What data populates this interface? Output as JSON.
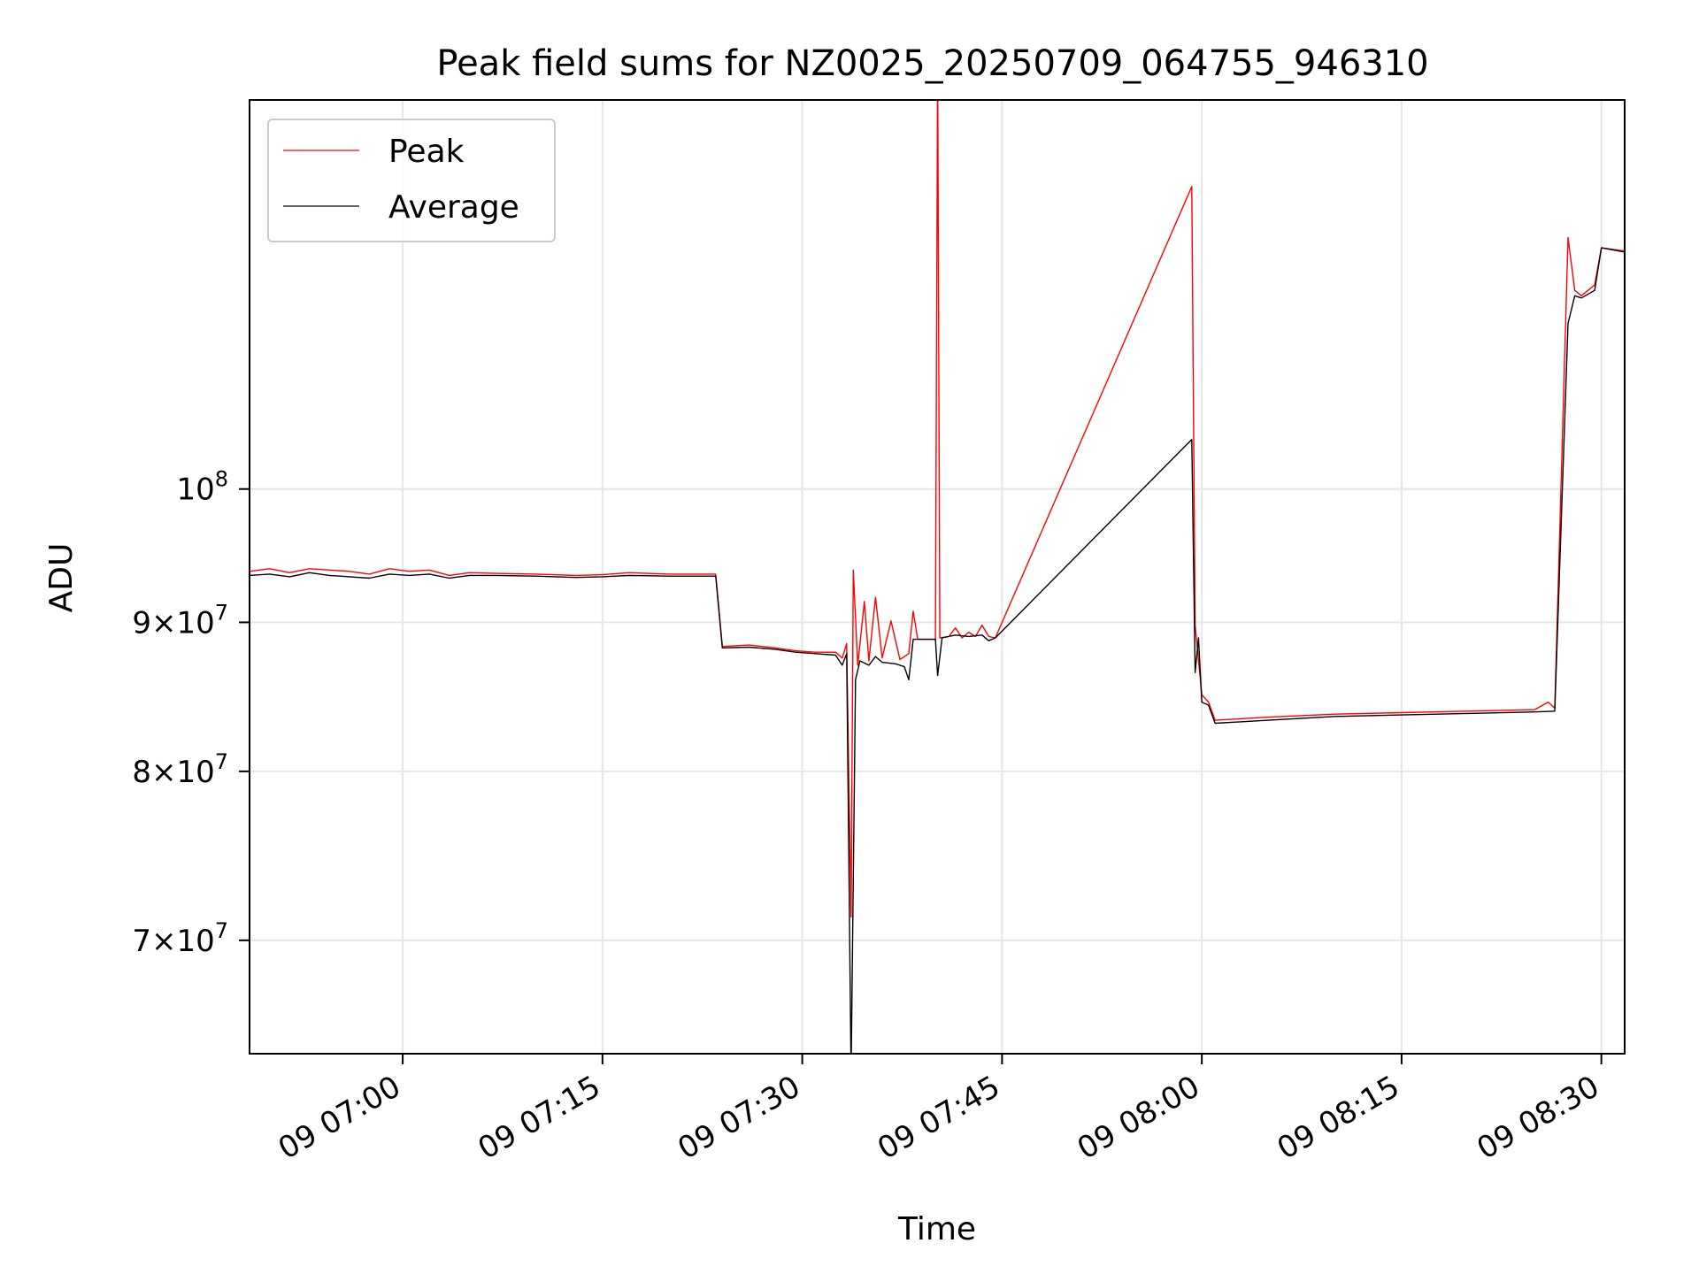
{
  "chart_data": {
    "type": "line",
    "title": "Peak field sums for NZ0025_20250709_064755_946310",
    "xlabel": "Time",
    "ylabel": "ADU",
    "x_unit": "time of day on 2025-07-09 (HH:MM)",
    "y_scale": "log",
    "xlim": [
      "06:48:30",
      "08:31:45"
    ],
    "ylim": [
      64000000,
      136000000
    ],
    "grid": true,
    "legend_position": "upper-left",
    "x_ticks": [
      {
        "value": "07:00",
        "label": "09 07:00"
      },
      {
        "value": "07:15",
        "label": "09 07:15"
      },
      {
        "value": "07:30",
        "label": "09 07:30"
      },
      {
        "value": "07:45",
        "label": "09 07:45"
      },
      {
        "value": "08:00",
        "label": "09 08:00"
      },
      {
        "value": "08:15",
        "label": "09 08:15"
      },
      {
        "value": "08:30",
        "label": "09 08:30"
      }
    ],
    "y_ticks": [
      {
        "value": 70000000,
        "base": "7",
        "exp": "7"
      },
      {
        "value": 80000000,
        "base": "8",
        "exp": "7"
      },
      {
        "value": 90000000,
        "base": "9",
        "exp": "7"
      },
      {
        "value": 100000000,
        "base": "10",
        "exp": "8"
      }
    ],
    "series": [
      {
        "name": "Peak",
        "color": "#ff0000",
        "points": [
          [
            "06:48:30",
            93700000.0
          ],
          [
            "06:50:00",
            93900000.0
          ],
          [
            "06:51:30",
            93600000.0
          ],
          [
            "06:53:00",
            93900000.0
          ],
          [
            "06:54:30",
            93800000.0
          ],
          [
            "06:56:00",
            93700000.0
          ],
          [
            "06:57:30",
            93500000.0
          ],
          [
            "06:59:00",
            93900000.0
          ],
          [
            "07:00:30",
            93700000.0
          ],
          [
            "07:02:00",
            93800000.0
          ],
          [
            "07:03:30",
            93400000.0
          ],
          [
            "07:05:00",
            93600000.0
          ],
          [
            "07:07:00",
            93550000.0
          ],
          [
            "07:10:00",
            93500000.0
          ],
          [
            "07:13:00",
            93400000.0
          ],
          [
            "07:15:00",
            93450000.0
          ],
          [
            "07:17:00",
            93600000.0
          ],
          [
            "07:20:00",
            93500000.0
          ],
          [
            "07:23:30",
            93500000.0
          ],
          [
            "07:24:00",
            88300000.0
          ],
          [
            "07:26:00",
            88400000.0
          ],
          [
            "07:28:00",
            88200000.0
          ],
          [
            "07:29:30",
            88000000.0
          ],
          [
            "07:31:00",
            87900000.0
          ],
          [
            "07:32:30",
            87900000.0
          ],
          [
            "07:33:00",
            87500000.0
          ],
          [
            "07:33:20",
            88500000.0
          ],
          [
            "07:33:40",
            71300000.0
          ],
          [
            "07:33:50",
            93800000.0
          ],
          [
            "07:34:10",
            87000000.0
          ],
          [
            "07:34:40",
            91500000.0
          ],
          [
            "07:35:00",
            87300000.0
          ],
          [
            "07:35:30",
            91800000.0
          ],
          [
            "07:36:00",
            87500000.0
          ],
          [
            "07:36:40",
            90100000.0
          ],
          [
            "07:37:20",
            87400000.0
          ],
          [
            "07:38:00",
            87800000.0
          ],
          [
            "07:38:20",
            90800000.0
          ],
          [
            "07:38:40",
            88800000.0
          ],
          [
            "07:40:00",
            88800000.0
          ],
          [
            "07:40:10",
            140000000.0
          ],
          [
            "07:40:20",
            88900000.0
          ],
          [
            "07:41:00",
            89000000.0
          ],
          [
            "07:41:30",
            89600000.0
          ],
          [
            "07:42:00",
            88900000.0
          ],
          [
            "07:42:30",
            89300000.0
          ],
          [
            "07:43:00",
            89000000.0
          ],
          [
            "07:43:30",
            89800000.0
          ],
          [
            "07:44:00",
            89000000.0
          ],
          [
            "07:44:30",
            88900000.0
          ],
          [
            "07:59:15",
            127000000.0
          ],
          [
            "07:59:30",
            89800000.0
          ],
          [
            "08:00:00",
            85000000.0
          ],
          [
            "08:00:30",
            84500000.0
          ],
          [
            "08:01:00",
            83300000.0
          ],
          [
            "08:05:00",
            83500000.0
          ],
          [
            "08:10:00",
            83700000.0
          ],
          [
            "08:15:00",
            83800000.0
          ],
          [
            "08:20:00",
            83900000.0
          ],
          [
            "08:25:00",
            84000000.0
          ],
          [
            "08:26:00",
            84500000.0
          ],
          [
            "08:26:30",
            84100000.0
          ],
          [
            "08:27:30",
            122000000.0
          ],
          [
            "08:28:00",
            117000000.0
          ],
          [
            "08:28:30",
            116500000.0
          ],
          [
            "08:29:30",
            117500000.0
          ],
          [
            "08:30:00",
            121000000.0
          ],
          [
            "08:31:45",
            120700000.0
          ]
        ]
      },
      {
        "name": "Average",
        "color": "#000000",
        "points": [
          [
            "06:48:30",
            93400000.0
          ],
          [
            "06:50:00",
            93500000.0
          ],
          [
            "06:51:30",
            93300000.0
          ],
          [
            "06:53:00",
            93600000.0
          ],
          [
            "06:54:30",
            93400000.0
          ],
          [
            "06:56:00",
            93300000.0
          ],
          [
            "06:57:30",
            93200000.0
          ],
          [
            "06:59:00",
            93500000.0
          ],
          [
            "07:00:30",
            93400000.0
          ],
          [
            "07:02:00",
            93500000.0
          ],
          [
            "07:03:30",
            93200000.0
          ],
          [
            "07:05:00",
            93400000.0
          ],
          [
            "07:07:00",
            93400000.0
          ],
          [
            "07:10:00",
            93350000.0
          ],
          [
            "07:13:00",
            93250000.0
          ],
          [
            "07:15:00",
            93300000.0
          ],
          [
            "07:17:00",
            93400000.0
          ],
          [
            "07:20:00",
            93350000.0
          ],
          [
            "07:23:30",
            93350000.0
          ],
          [
            "07:24:00",
            88200000.0
          ],
          [
            "07:26:00",
            88250000.0
          ],
          [
            "07:28:00",
            88100000.0
          ],
          [
            "07:29:30",
            87900000.0
          ],
          [
            "07:31:00",
            87800000.0
          ],
          [
            "07:32:30",
            87700000.0
          ],
          [
            "07:33:00",
            87000000.0
          ],
          [
            "07:33:20",
            87800000.0
          ],
          [
            "07:33:40",
            63000000.0
          ],
          [
            "07:34:00",
            86000000.0
          ],
          [
            "07:34:20",
            87300000.0
          ],
          [
            "07:35:00",
            87000000.0
          ],
          [
            "07:35:30",
            87600000.0
          ],
          [
            "07:36:00",
            87200000.0
          ],
          [
            "07:37:00",
            87100000.0
          ],
          [
            "07:37:40",
            86900000.0
          ],
          [
            "07:38:00",
            86000000.0
          ],
          [
            "07:38:20",
            88800000.0
          ],
          [
            "07:40:00",
            88800000.0
          ],
          [
            "07:40:10",
            86300000.0
          ],
          [
            "07:40:30",
            88900000.0
          ],
          [
            "07:41:30",
            89100000.0
          ],
          [
            "07:42:30",
            89000000.0
          ],
          [
            "07:43:30",
            89100000.0
          ],
          [
            "07:44:00",
            88700000.0
          ],
          [
            "07:44:30",
            88900000.0
          ],
          [
            "07:59:15",
            104000000.0
          ],
          [
            "07:59:30",
            86500000.0
          ],
          [
            "07:59:45",
            88900000.0
          ],
          [
            "08:00:00",
            84500000.0
          ],
          [
            "08:00:30",
            84300000.0
          ],
          [
            "08:01:00",
            83100000.0
          ],
          [
            "08:05:00",
            83300000.0
          ],
          [
            "08:10:00",
            83550000.0
          ],
          [
            "08:15:00",
            83650000.0
          ],
          [
            "08:20:00",
            83750000.0
          ],
          [
            "08:25:00",
            83850000.0
          ],
          [
            "08:26:30",
            83900000.0
          ],
          [
            "08:27:30",
            114000000.0
          ],
          [
            "08:28:00",
            116500000.0
          ],
          [
            "08:28:30",
            116300000.0
          ],
          [
            "08:29:30",
            117000000.0
          ],
          [
            "08:30:00",
            121000000.0
          ],
          [
            "08:31:45",
            120600000.0
          ]
        ]
      }
    ]
  }
}
